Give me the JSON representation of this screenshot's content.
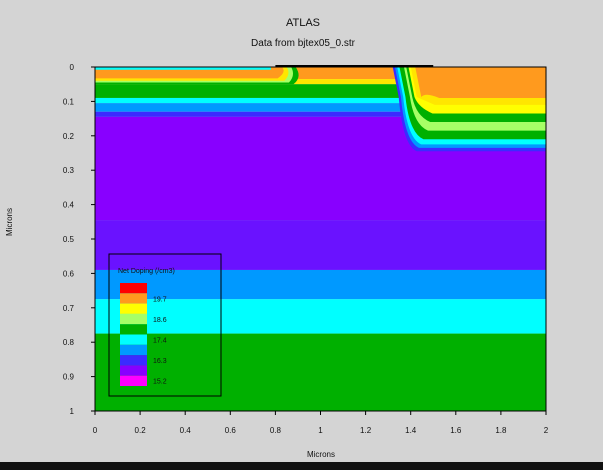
{
  "window": {
    "title": "ATLAS",
    "subtitle": "Data from bjtex05_0.str"
  },
  "chart_data": {
    "type": "heatmap",
    "title": "ATLAS",
    "subtitle": "Data from bjtex05_0.str",
    "xlabel": "Microns",
    "ylabel": "Microns",
    "xlim": [
      0,
      2
    ],
    "ylim": [
      0,
      1
    ],
    "y_inverted": true,
    "x_ticks": [
      "0",
      "0.2",
      "0.4",
      "0.6",
      "0.8",
      "1",
      "1.2",
      "1.4",
      "1.6",
      "1.8",
      "2"
    ],
    "y_ticks": [
      "0",
      "0.1",
      "0.2",
      "0.3",
      "0.4",
      "0.5",
      "0.6",
      "0.7",
      "0.8",
      "0.9",
      "1"
    ],
    "x_tick_values": [
      0,
      0.2,
      0.4,
      0.6,
      0.8,
      1.0,
      1.2,
      1.4,
      1.6,
      1.8,
      2.0
    ],
    "y_tick_values": [
      0,
      0.1,
      0.2,
      0.3,
      0.4,
      0.5,
      0.6,
      0.7,
      0.8,
      0.9,
      1.0
    ],
    "legend": {
      "title": "Net Doping (/cm3)",
      "placement": "bottom-left",
      "colors": [
        "#ff0000",
        "#ff9a1e",
        "#ffff00",
        "#a6ff66",
        "#00b000",
        "#00ffff",
        "#0099ff",
        "#3b2bff",
        "#8800ff",
        "#ff00ff"
      ],
      "labels": [
        "",
        "19.7",
        "",
        "18.6",
        "",
        "17.4",
        "",
        "16.3",
        "",
        "15.2"
      ]
    },
    "layers": [
      {
        "y0": 0.0,
        "y1": 0.035,
        "color": "#ff9a1e"
      },
      {
        "y0": 0.035,
        "y1": 0.05,
        "color": "#ffe600"
      },
      {
        "y0": 0.05,
        "y1": 0.09,
        "color": "#00b000"
      },
      {
        "y0": 0.09,
        "y1": 0.105,
        "color": "#00ffff"
      },
      {
        "y0": 0.105,
        "y1": 0.13,
        "color": "#0099ff"
      },
      {
        "y0": 0.13,
        "y1": 0.145,
        "color": "#3b2bff"
      },
      {
        "y0": 0.145,
        "y1": 0.445,
        "color": "#8800ff"
      },
      {
        "y0": 0.445,
        "y1": 0.59,
        "color": "#6a12ff"
      },
      {
        "y0": 0.59,
        "y1": 0.675,
        "color": "#0099ff"
      },
      {
        "y0": 0.675,
        "y1": 0.775,
        "color": "#00ffff"
      },
      {
        "y0": 0.775,
        "y1": 1.0,
        "color": "#00b000"
      }
    ],
    "contacts": [
      {
        "x0": 0.8,
        "x1": 1.5,
        "y": 0.0
      }
    ]
  }
}
